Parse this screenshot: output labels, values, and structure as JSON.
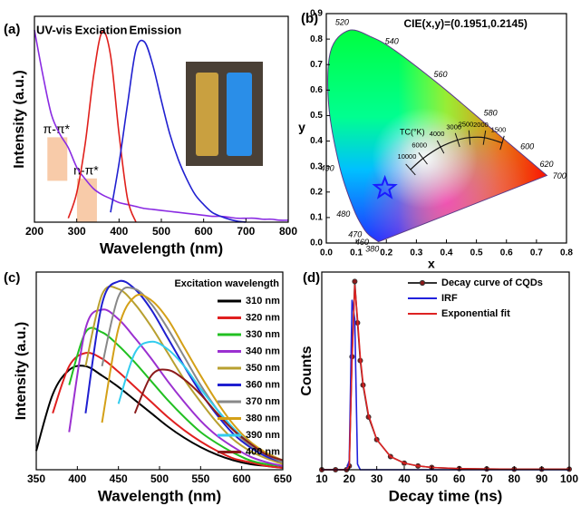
{
  "chart_data": [
    {
      "type": "line",
      "panel_label": "(a)",
      "x_label": "Wavelength (nm)",
      "y_label": "Intensity (a.u.)",
      "x": [
        200,
        220,
        240,
        260,
        280,
        300,
        320,
        340,
        360,
        380,
        400,
        420,
        440,
        460,
        480,
        500,
        520,
        540,
        560,
        580,
        600,
        620,
        640,
        660,
        680,
        700,
        720,
        740,
        760,
        780,
        800
      ],
      "xlim": [
        200,
        800
      ],
      "xticks": [
        200,
        300,
        400,
        500,
        600,
        700,
        800
      ],
      "ylim": [
        0,
        1.05
      ],
      "legend": "inline",
      "smooth": true,
      "series": [
        {
          "name": "UV-vis",
          "color": "#8a2be2",
          "values": [
            0.98,
            0.75,
            0.55,
            0.45,
            0.38,
            0.28,
            0.22,
            0.17,
            0.14,
            0.12,
            0.1,
            0.09,
            0.08,
            0.07,
            0.065,
            0.06,
            0.055,
            0.05,
            0.045,
            0.04,
            0.035,
            0.03,
            0.03,
            0.025,
            0.02,
            0.02,
            0.02,
            0.015,
            0.015,
            0.01,
            0.01
          ]
        },
        {
          "name": "Exciation",
          "color": "#e0201c",
          "values": [
            null,
            null,
            null,
            null,
            0.02,
            0.15,
            0.4,
            0.75,
            0.97,
            0.85,
            0.45,
            0.12,
            0,
            null,
            null,
            null,
            null,
            null,
            null,
            null,
            null,
            null,
            null,
            null,
            null,
            null,
            null,
            null,
            null,
            null,
            null
          ]
        },
        {
          "name": "Emission",
          "color": "#2020d0",
          "values": [
            null,
            null,
            null,
            null,
            null,
            null,
            null,
            null,
            null,
            0.05,
            0.3,
            0.6,
            0.88,
            0.92,
            0.8,
            0.62,
            0.45,
            0.32,
            0.22,
            0.14,
            0.09,
            0.05,
            0.03,
            0.015,
            0.005,
            0,
            null,
            null,
            null,
            null,
            null
          ]
        }
      ],
      "annotations": [
        {
          "text": "π-π*",
          "x": 252,
          "y": 0.47
        },
        {
          "text": "n-π*",
          "x": 322,
          "y": 0.26
        }
      ]
    },
    {
      "type": "cie",
      "panel_label": "(b)",
      "title": "CIE(x,y)=(0.1951,0.2145)",
      "x_label": "x",
      "y_label": "y",
      "xlim": [
        0,
        0.8
      ],
      "xticks": [
        {
          "value": 0,
          "label": "0.0"
        },
        0.1,
        0.2,
        0.3,
        0.4,
        0.5,
        0.6,
        0.7,
        0.8
      ],
      "ylim": [
        0,
        0.9
      ],
      "yticks": [
        {
          "value": 0,
          "label": "0.0"
        },
        0.1,
        0.2,
        0.3,
        0.4,
        0.5,
        0.6,
        0.7,
        0.8,
        0.9
      ],
      "point": {
        "x": 0.1951,
        "y": 0.2145,
        "color": "#1a1aff"
      },
      "spectral_locus": {
        "x": [
          0.1741,
          0.144,
          0.1241,
          0.0913,
          0.0454,
          0.0082,
          0.0139,
          0.0743,
          0.1547,
          0.2296,
          0.3731,
          0.5125,
          0.627,
          0.6915,
          0.7347
        ],
        "y": [
          0.005,
          0.0297,
          0.0578,
          0.1327,
          0.295,
          0.5384,
          0.7502,
          0.8338,
          0.8059,
          0.7543,
          0.6245,
          0.4866,
          0.3725,
          0.3083,
          0.2653
        ],
        "labels": [
          "380",
          "460",
          "470",
          "480",
          "490",
          null,
          null,
          "520",
          null,
          "540",
          "560",
          "580",
          "600",
          "620",
          "700"
        ]
      },
      "planckian_locus": {
        "title": "TC(°K)",
        "x": [
          0.2807,
          0.3221,
          0.3805,
          0.4369,
          0.477,
          0.5267,
          0.5857
        ],
        "y": [
          0.2884,
          0.3318,
          0.3768,
          0.4041,
          0.4137,
          0.4133,
          0.3931
        ],
        "labels": [
          "10000",
          "6000",
          "4000",
          "3000",
          "2500",
          "2000",
          "1500"
        ]
      }
    },
    {
      "type": "line",
      "panel_label": "(c)",
      "x_label": "Wavelength (nm)",
      "y_label": "Intensity (a.u.)",
      "x": [
        350,
        370,
        390,
        410,
        430,
        450,
        470,
        490,
        510,
        530,
        550,
        570,
        590,
        610,
        630,
        650
      ],
      "xlim": [
        350,
        650
      ],
      "xticks": [
        350,
        400,
        450,
        500,
        550,
        600,
        650
      ],
      "ylim": [
        0,
        1.05
      ],
      "legend": "upper right",
      "legend_title": "Excitation wavelength",
      "smooth": true,
      "series": [
        {
          "name": "310 nm",
          "color": "#000000",
          "values": [
            0.1,
            0.4,
            0.53,
            0.55,
            0.5,
            0.44,
            0.37,
            0.3,
            0.23,
            0.17,
            0.12,
            0.08,
            0.05,
            0.03,
            0.02,
            0.01
          ]
        },
        {
          "name": "320 nm",
          "color": "#e02020",
          "values": [
            null,
            0.3,
            0.55,
            0.62,
            0.59,
            0.52,
            0.44,
            0.36,
            0.28,
            0.21,
            0.15,
            0.1,
            0.06,
            0.04,
            0.02,
            0.01
          ]
        },
        {
          "name": "330 nm",
          "color": "#22c022",
          "values": [
            null,
            null,
            0.45,
            0.73,
            0.73,
            0.66,
            0.57,
            0.47,
            0.37,
            0.28,
            0.2,
            0.14,
            0.09,
            0.05,
            0.03,
            0.02
          ]
        },
        {
          "name": "340 nm",
          "color": "#9b30d0",
          "values": [
            null,
            null,
            0.2,
            0.75,
            0.85,
            0.8,
            0.7,
            0.59,
            0.47,
            0.36,
            0.26,
            0.18,
            0.12,
            0.07,
            0.04,
            0.02
          ]
        },
        {
          "name": "350 nm",
          "color": "#b8a030",
          "values": [
            null,
            null,
            null,
            0.55,
            0.93,
            0.96,
            0.88,
            0.76,
            0.62,
            0.48,
            0.36,
            0.25,
            0.16,
            0.1,
            0.06,
            0.03
          ]
        },
        {
          "name": "360 nm",
          "color": "#1f1fd0",
          "values": [
            null,
            null,
            null,
            0.3,
            0.88,
            1.0,
            0.96,
            0.85,
            0.7,
            0.55,
            0.41,
            0.29,
            0.19,
            0.12,
            0.07,
            0.04
          ]
        },
        {
          "name": "370 nm",
          "color": "#888888",
          "values": [
            null,
            null,
            null,
            null,
            0.55,
            0.92,
            0.96,
            0.88,
            0.75,
            0.6,
            0.45,
            0.32,
            0.21,
            0.13,
            0.08,
            0.04
          ]
        },
        {
          "name": "380 nm",
          "color": "#d4a017",
          "values": [
            null,
            null,
            null,
            null,
            0.25,
            0.75,
            0.92,
            0.9,
            0.8,
            0.65,
            0.5,
            0.36,
            0.24,
            0.15,
            0.09,
            0.05
          ]
        },
        {
          "name": "390 nm",
          "color": "#33ccee",
          "values": [
            null,
            null,
            null,
            null,
            null,
            0.35,
            0.62,
            0.68,
            0.64,
            0.55,
            0.43,
            0.32,
            0.22,
            0.14,
            0.08,
            0.05
          ]
        },
        {
          "name": "400 nm",
          "color": "#8b1a1a",
          "values": [
            null,
            null,
            null,
            null,
            null,
            null,
            0.3,
            0.5,
            0.53,
            0.48,
            0.4,
            0.3,
            0.21,
            0.14,
            0.08,
            0.05
          ]
        }
      ]
    },
    {
      "type": "line",
      "panel_label": "(d)",
      "x_label": "Decay time (ns)",
      "y_label": "Counts",
      "x": [
        10,
        15,
        19,
        20,
        21,
        22,
        23,
        24,
        25,
        27,
        30,
        35,
        40,
        45,
        50,
        60,
        70,
        80,
        90,
        100
      ],
      "xlim": [
        10,
        100
      ],
      "xticks": [
        10,
        20,
        30,
        40,
        50,
        60,
        70,
        80,
        90,
        100
      ],
      "ylim": [
        0,
        1.05
      ],
      "legend": "upper right",
      "series": [
        {
          "name": "Decay curve of CQDs",
          "color": "#333333",
          "marker": "circle",
          "values": [
            0,
            0,
            0,
            0.02,
            0.6,
            1.0,
            0.78,
            0.58,
            0.45,
            0.28,
            0.16,
            0.07,
            0.035,
            0.02,
            0.012,
            0.006,
            0.004,
            0.003,
            0.003,
            0.003
          ]
        },
        {
          "name": "IRF",
          "color": "#2222dd",
          "values": [
            0,
            0,
            0,
            0.05,
            0.9,
            0.8,
            0.03,
            0,
            0,
            0,
            0,
            0,
            0,
            0,
            0,
            0,
            0,
            0,
            0,
            0
          ]
        },
        {
          "name": "Exponential fit",
          "color": "#dd2222",
          "values": [
            0,
            0,
            0,
            0.02,
            0.58,
            0.98,
            0.8,
            0.6,
            0.46,
            0.29,
            0.16,
            0.07,
            0.035,
            0.02,
            0.012,
            0.006,
            0.004,
            0.003,
            0.003,
            0.003
          ]
        }
      ]
    }
  ]
}
